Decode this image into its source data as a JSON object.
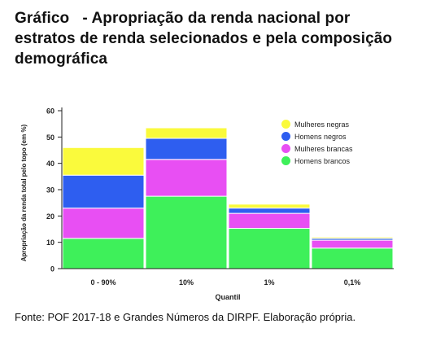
{
  "title": {
    "prefix": "Gráfico",
    "separator": "   - ",
    "text": "Apropriação da renda nacional por estratos de renda selecionados e pela composição demográfica"
  },
  "source": "Fonte: POF 2017-18 e Grandes Números da DIRPF. Elaboração própria.",
  "chart_data": {
    "type": "bar",
    "stacked": true,
    "categories": [
      "0 - 90%",
      "10%",
      "1%",
      "0,1%"
    ],
    "series": [
      {
        "name": "Homens brancos",
        "color": "#3ef05a",
        "values": [
          11.5,
          27.5,
          15.3,
          7.8
        ]
      },
      {
        "name": "Mulheres brancas",
        "color": "#e84ff3",
        "values": [
          11.5,
          14.0,
          5.7,
          3.0
        ]
      },
      {
        "name": "Homens negros",
        "color": "#2e5ef0",
        "values": [
          12.5,
          8.0,
          2.0,
          0.7
        ]
      },
      {
        "name": "Mulheres negras",
        "color": "#fafa3c",
        "values": [
          10.5,
          4.0,
          1.5,
          0.5
        ]
      }
    ],
    "legend_order": [
      "Mulheres negras",
      "Homens negros",
      "Mulheres brancas",
      "Homens brancos"
    ],
    "legend_position": "top-right",
    "xlabel": "Quantil",
    "ylabel": "Apropriação da renda total pelo topo (em %)",
    "ylim": [
      0,
      60
    ],
    "yticks": [
      0,
      10,
      20,
      30,
      40,
      50,
      60
    ],
    "grid": false
  }
}
